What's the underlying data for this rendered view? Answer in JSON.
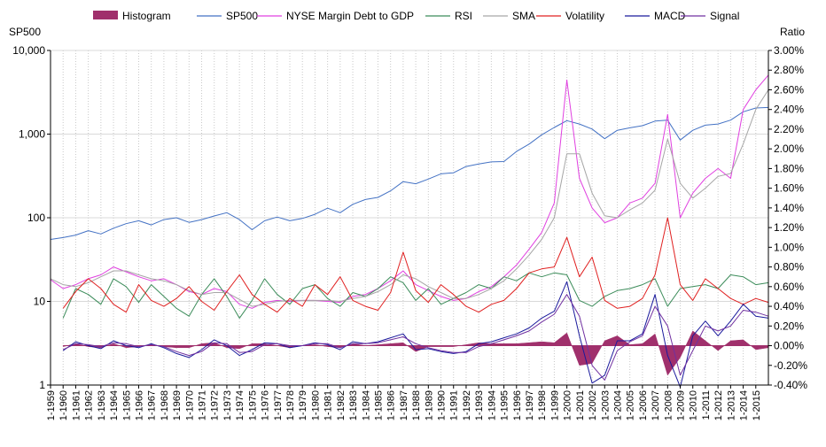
{
  "chart_data": {
    "type": "line",
    "title": "",
    "left_axis": {
      "title": "SP500",
      "scale": "log",
      "ylim": [
        1,
        10000
      ],
      "ticks": [
        1,
        10,
        100,
        1000,
        10000
      ],
      "tick_labels": [
        "1",
        "10",
        "100",
        "1,000",
        "10,000"
      ]
    },
    "right_axis": {
      "title": "Ratio",
      "ylim": [
        -0.4,
        3.0
      ],
      "ticks": [
        -0.4,
        -0.2,
        0.0,
        0.2,
        0.4,
        0.6,
        0.8,
        1.0,
        1.2,
        1.4,
        1.6,
        1.8,
        2.0,
        2.2,
        2.4,
        2.6,
        2.8,
        3.0
      ],
      "tick_labels": [
        "-0.40%",
        "-0.20%",
        "0.00%",
        "0.20%",
        "0.40%",
        "0.60%",
        "0.80%",
        "1.00%",
        "1.20%",
        "1.40%",
        "1.60%",
        "1.80%",
        "2.00%",
        "2.20%",
        "2.40%",
        "2.60%",
        "2.80%",
        "3.00%"
      ]
    },
    "x_axis": {
      "xlim": [
        1959,
        2016
      ],
      "categories": [
        "1-1959",
        "1-1960",
        "1-1961",
        "1-1962",
        "1-1963",
        "1-1964",
        "1-1965",
        "1-1966",
        "1-1967",
        "1-1968",
        "1-1969",
        "1-1970",
        "1-1971",
        "1-1972",
        "1-1973",
        "1-1974",
        "1-1975",
        "1-1976",
        "1-1977",
        "1-1978",
        "1-1979",
        "1-1980",
        "1-1981",
        "1-1982",
        "1-1983",
        "1-1984",
        "1-1985",
        "1-1986",
        "1-1987",
        "1-1988",
        "1-1989",
        "1-1990",
        "1-1991",
        "1-1992",
        "1-1993",
        "1-1994",
        "1-1995",
        "1-1996",
        "1-1997",
        "1-1998",
        "1-1999",
        "1-2000",
        "1-2001",
        "1-2002",
        "1-2003",
        "1-2004",
        "1-2005",
        "1-2006",
        "1-2007",
        "1-2008",
        "1-2009",
        "1-2010",
        "1-2011",
        "1-2012",
        "1-2013",
        "1-2014",
        "1-2015"
      ]
    },
    "grid": {
      "vertical": true,
      "horizontal": true
    },
    "legend": {
      "position": "top",
      "entries": [
        "Histogram",
        "SP500",
        "NYSE Margin Debt to GDP",
        "RSI",
        "SMA",
        "Volatility",
        "MACD",
        "Signal"
      ]
    },
    "series": [
      {
        "name": "SP500",
        "axis": "left",
        "kind": "line",
        "color": "#4472C4",
        "x": [
          1959,
          1960,
          1961,
          1962,
          1963,
          1964,
          1965,
          1966,
          1967,
          1968,
          1969,
          1970,
          1971,
          1972,
          1973,
          1974,
          1975,
          1976,
          1977,
          1978,
          1979,
          1980,
          1981,
          1982,
          1983,
          1984,
          1985,
          1986,
          1987,
          1988,
          1989,
          1990,
          1991,
          1992,
          1993,
          1994,
          1995,
          1996,
          1997,
          1998,
          1999,
          2000,
          2001,
          2002,
          2003,
          2004,
          2005,
          2006,
          2007,
          2008,
          2009,
          2010,
          2011,
          2012,
          2013,
          2014,
          2015,
          2016
        ],
        "values": [
          55,
          58,
          62,
          70,
          64,
          75,
          85,
          92,
          82,
          95,
          100,
          88,
          95,
          105,
          115,
          95,
          72,
          92,
          102,
          92,
          98,
          110,
          130,
          115,
          145,
          165,
          175,
          210,
          270,
          255,
          290,
          335,
          345,
          410,
          440,
          465,
          470,
          620,
          760,
          980,
          1200,
          1450,
          1320,
          1150,
          880,
          1110,
          1190,
          1260,
          1430,
          1470,
          850,
          1110,
          1280,
          1320,
          1470,
          1850,
          2050,
          2080
        ]
      },
      {
        "name": "NYSE Margin Debt to GDP",
        "axis": "right",
        "kind": "line",
        "color": "#E040E0",
        "x": [
          1959,
          1960,
          1961,
          1962,
          1963,
          1964,
          1965,
          1966,
          1967,
          1968,
          1969,
          1970,
          1971,
          1972,
          1973,
          1974,
          1975,
          1976,
          1977,
          1978,
          1979,
          1980,
          1981,
          1982,
          1983,
          1984,
          1985,
          1986,
          1987,
          1988,
          1989,
          1990,
          1991,
          1992,
          1993,
          1994,
          1995,
          1996,
          1997,
          1998,
          1999,
          2000,
          2001,
          2002,
          2003,
          2004,
          2005,
          2006,
          2007,
          2008,
          2009,
          2010,
          2011,
          2012,
          2013,
          2014,
          2015,
          2016
        ],
        "values": [
          0.67,
          0.58,
          0.62,
          0.68,
          0.72,
          0.8,
          0.75,
          0.7,
          0.66,
          0.68,
          0.62,
          0.55,
          0.52,
          0.58,
          0.55,
          0.42,
          0.38,
          0.44,
          0.46,
          0.45,
          0.46,
          0.46,
          0.45,
          0.44,
          0.5,
          0.52,
          0.58,
          0.66,
          0.76,
          0.62,
          0.56,
          0.5,
          0.46,
          0.48,
          0.55,
          0.6,
          0.7,
          0.82,
          0.98,
          1.15,
          1.45,
          2.7,
          1.7,
          1.4,
          1.25,
          1.3,
          1.45,
          1.5,
          1.65,
          2.35,
          1.3,
          1.55,
          1.7,
          1.8,
          1.7,
          2.4,
          2.6,
          2.75
        ]
      },
      {
        "name": "RSI",
        "axis": "right",
        "kind": "line",
        "color": "#3C8C5A",
        "x": [
          1960,
          1961,
          1962,
          1963,
          1964,
          1965,
          1966,
          1967,
          1968,
          1969,
          1970,
          1971,
          1972,
          1973,
          1974,
          1975,
          1976,
          1977,
          1978,
          1979,
          1980,
          1981,
          1982,
          1983,
          1984,
          1985,
          1986,
          1987,
          1988,
          1989,
          1990,
          1991,
          1992,
          1993,
          1994,
          1995,
          1996,
          1997,
          1998,
          1999,
          2000,
          2001,
          2002,
          2003,
          2004,
          2005,
          2006,
          2007,
          2008,
          2009,
          2010,
          2011,
          2012,
          2013,
          2014,
          2015,
          2016
        ],
        "values": [
          0.28,
          0.58,
          0.52,
          0.42,
          0.68,
          0.6,
          0.44,
          0.62,
          0.5,
          0.38,
          0.3,
          0.52,
          0.68,
          0.5,
          0.28,
          0.46,
          0.68,
          0.52,
          0.42,
          0.58,
          0.62,
          0.48,
          0.4,
          0.54,
          0.5,
          0.58,
          0.7,
          0.64,
          0.46,
          0.58,
          0.42,
          0.48,
          0.54,
          0.62,
          0.58,
          0.7,
          0.66,
          0.74,
          0.7,
          0.74,
          0.72,
          0.46,
          0.4,
          0.5,
          0.56,
          0.58,
          0.62,
          0.68,
          0.4,
          0.58,
          0.6,
          0.62,
          0.58,
          0.72,
          0.7,
          0.62,
          0.64
        ]
      },
      {
        "name": "SMA",
        "axis": "right",
        "kind": "line",
        "color": "#A6A6A6",
        "x": [
          1959,
          1960,
          1961,
          1962,
          1963,
          1964,
          1965,
          1966,
          1967,
          1968,
          1969,
          1970,
          1971,
          1972,
          1973,
          1974,
          1975,
          1976,
          1977,
          1978,
          1979,
          1980,
          1981,
          1982,
          1983,
          1984,
          1985,
          1986,
          1987,
          1988,
          1989,
          1990,
          1991,
          1992,
          1993,
          1994,
          1995,
          1996,
          1997,
          1998,
          1999,
          2000,
          2001,
          2002,
          2003,
          2004,
          2005,
          2006,
          2007,
          2008,
          2009,
          2010,
          2011,
          2012,
          2013,
          2014,
          2015,
          2016
        ],
        "values": [
          0.68,
          0.62,
          0.6,
          0.64,
          0.7,
          0.76,
          0.76,
          0.72,
          0.68,
          0.66,
          0.62,
          0.56,
          0.52,
          0.54,
          0.54,
          0.47,
          0.4,
          0.42,
          0.45,
          0.46,
          0.46,
          0.46,
          0.46,
          0.45,
          0.48,
          0.5,
          0.55,
          0.62,
          0.72,
          0.68,
          0.6,
          0.54,
          0.48,
          0.48,
          0.52,
          0.58,
          0.66,
          0.78,
          0.92,
          1.08,
          1.3,
          1.95,
          1.95,
          1.55,
          1.32,
          1.3,
          1.38,
          1.45,
          1.58,
          2.1,
          1.65,
          1.5,
          1.6,
          1.72,
          1.75,
          2.05,
          2.4,
          2.6
        ]
      },
      {
        "name": "Volatility",
        "axis": "right",
        "kind": "line",
        "color": "#E02020",
        "x": [
          1960,
          1961,
          1962,
          1963,
          1964,
          1965,
          1966,
          1967,
          1968,
          1969,
          1970,
          1971,
          1972,
          1973,
          1974,
          1975,
          1976,
          1977,
          1978,
          1979,
          1980,
          1981,
          1982,
          1983,
          1984,
          1985,
          1986,
          1987,
          1988,
          1989,
          1990,
          1991,
          1992,
          1993,
          1994,
          1995,
          1996,
          1997,
          1998,
          1999,
          2000,
          2001,
          2002,
          2003,
          2004,
          2005,
          2006,
          2007,
          2008,
          2009,
          2010,
          2011,
          2012,
          2013,
          2014,
          2015,
          2016
        ],
        "values": [
          0.38,
          0.55,
          0.68,
          0.58,
          0.42,
          0.34,
          0.62,
          0.46,
          0.4,
          0.48,
          0.6,
          0.45,
          0.36,
          0.55,
          0.72,
          0.52,
          0.42,
          0.34,
          0.48,
          0.4,
          0.62,
          0.52,
          0.7,
          0.46,
          0.4,
          0.36,
          0.54,
          0.95,
          0.56,
          0.44,
          0.62,
          0.52,
          0.4,
          0.34,
          0.42,
          0.46,
          0.58,
          0.74,
          0.78,
          0.8,
          1.1,
          0.7,
          0.9,
          0.46,
          0.38,
          0.4,
          0.48,
          0.72,
          1.3,
          0.62,
          0.46,
          0.68,
          0.58,
          0.48,
          0.42,
          0.48,
          0.44
        ]
      },
      {
        "name": "MACD",
        "axis": "right",
        "kind": "line",
        "color": "#1A1A9C",
        "x": [
          1960,
          1961,
          1962,
          1963,
          1964,
          1965,
          1966,
          1967,
          1968,
          1969,
          1970,
          1971,
          1972,
          1973,
          1974,
          1975,
          1976,
          1977,
          1978,
          1979,
          1980,
          1981,
          1982,
          1983,
          1984,
          1985,
          1986,
          1987,
          1988,
          1989,
          1990,
          1991,
          1992,
          1993,
          1994,
          1995,
          1996,
          1997,
          1998,
          1999,
          2000,
          2001,
          2002,
          2003,
          2004,
          2005,
          2006,
          2007,
          2008,
          2009,
          2010,
          2011,
          2012,
          2013,
          2014,
          2015,
          2016
        ],
        "values": [
          -0.05,
          0.04,
          0.0,
          -0.03,
          0.05,
          0.0,
          -0.02,
          0.02,
          -0.02,
          -0.08,
          -0.12,
          -0.04,
          0.06,
          0.0,
          -0.1,
          -0.04,
          0.03,
          0.02,
          -0.02,
          0.0,
          0.03,
          0.01,
          -0.04,
          0.04,
          0.02,
          0.04,
          0.08,
          0.12,
          -0.04,
          -0.03,
          -0.06,
          -0.08,
          -0.06,
          0.02,
          0.04,
          0.08,
          0.12,
          0.18,
          0.28,
          0.35,
          0.65,
          0.1,
          -0.38,
          -0.3,
          0.05,
          0.05,
          0.12,
          0.52,
          -0.1,
          -0.42,
          0.1,
          0.25,
          0.1,
          0.25,
          0.42,
          0.3,
          0.28
        ]
      },
      {
        "name": "Signal",
        "axis": "right",
        "kind": "line",
        "color": "#7030A0",
        "x": [
          1960,
          1961,
          1962,
          1963,
          1964,
          1965,
          1966,
          1967,
          1968,
          1969,
          1970,
          1971,
          1972,
          1973,
          1974,
          1975,
          1976,
          1977,
          1978,
          1979,
          1980,
          1981,
          1982,
          1983,
          1984,
          1985,
          1986,
          1987,
          1988,
          1989,
          1990,
          1991,
          1992,
          1993,
          1994,
          1995,
          1996,
          1997,
          1998,
          1999,
          2000,
          2001,
          2002,
          2003,
          2004,
          2005,
          2006,
          2007,
          2008,
          2009,
          2010,
          2011,
          2012,
          2013,
          2014,
          2015,
          2016
        ],
        "values": [
          -0.04,
          0.02,
          0.01,
          -0.01,
          0.03,
          0.02,
          -0.01,
          0.01,
          -0.01,
          -0.06,
          -0.1,
          -0.06,
          0.03,
          0.02,
          -0.07,
          -0.06,
          0.01,
          0.02,
          0.0,
          0.0,
          0.02,
          0.02,
          -0.02,
          0.02,
          0.02,
          0.03,
          0.06,
          0.09,
          0.02,
          -0.02,
          -0.05,
          -0.07,
          -0.07,
          -0.01,
          0.02,
          0.06,
          0.1,
          0.15,
          0.24,
          0.32,
          0.52,
          0.3,
          -0.2,
          -0.35,
          -0.05,
          0.04,
          0.1,
          0.4,
          0.2,
          -0.3,
          -0.05,
          0.2,
          0.15,
          0.2,
          0.36,
          0.34,
          0.3
        ]
      },
      {
        "name": "Histogram",
        "axis": "right",
        "kind": "area",
        "color": "#A0306C",
        "x": [
          1960,
          1961,
          1962,
          1963,
          1964,
          1965,
          1966,
          1967,
          1968,
          1969,
          1970,
          1971,
          1972,
          1973,
          1974,
          1975,
          1976,
          1977,
          1978,
          1979,
          1980,
          1981,
          1982,
          1983,
          1984,
          1985,
          1986,
          1987,
          1988,
          1989,
          1990,
          1991,
          1992,
          1993,
          1994,
          1995,
          1996,
          1997,
          1998,
          1999,
          2000,
          2001,
          2002,
          2003,
          2004,
          2005,
          2006,
          2007,
          2008,
          2009,
          2010,
          2011,
          2012,
          2013,
          2014,
          2015,
          2016
        ],
        "values": [
          -0.01,
          0.02,
          -0.01,
          -0.02,
          0.02,
          -0.02,
          -0.01,
          0.01,
          -0.01,
          -0.02,
          -0.02,
          0.02,
          0.03,
          -0.02,
          -0.03,
          0.02,
          0.02,
          0.0,
          -0.02,
          0.0,
          0.01,
          -0.01,
          -0.02,
          0.02,
          0.0,
          0.01,
          0.02,
          0.03,
          -0.06,
          -0.01,
          -0.01,
          -0.01,
          0.01,
          0.03,
          0.02,
          0.02,
          0.02,
          0.03,
          0.04,
          0.03,
          0.13,
          -0.2,
          -0.18,
          0.05,
          0.1,
          0.01,
          0.02,
          0.12,
          -0.3,
          -0.12,
          0.15,
          0.05,
          -0.05,
          0.05,
          0.06,
          -0.04,
          -0.02
        ]
      }
    ]
  }
}
